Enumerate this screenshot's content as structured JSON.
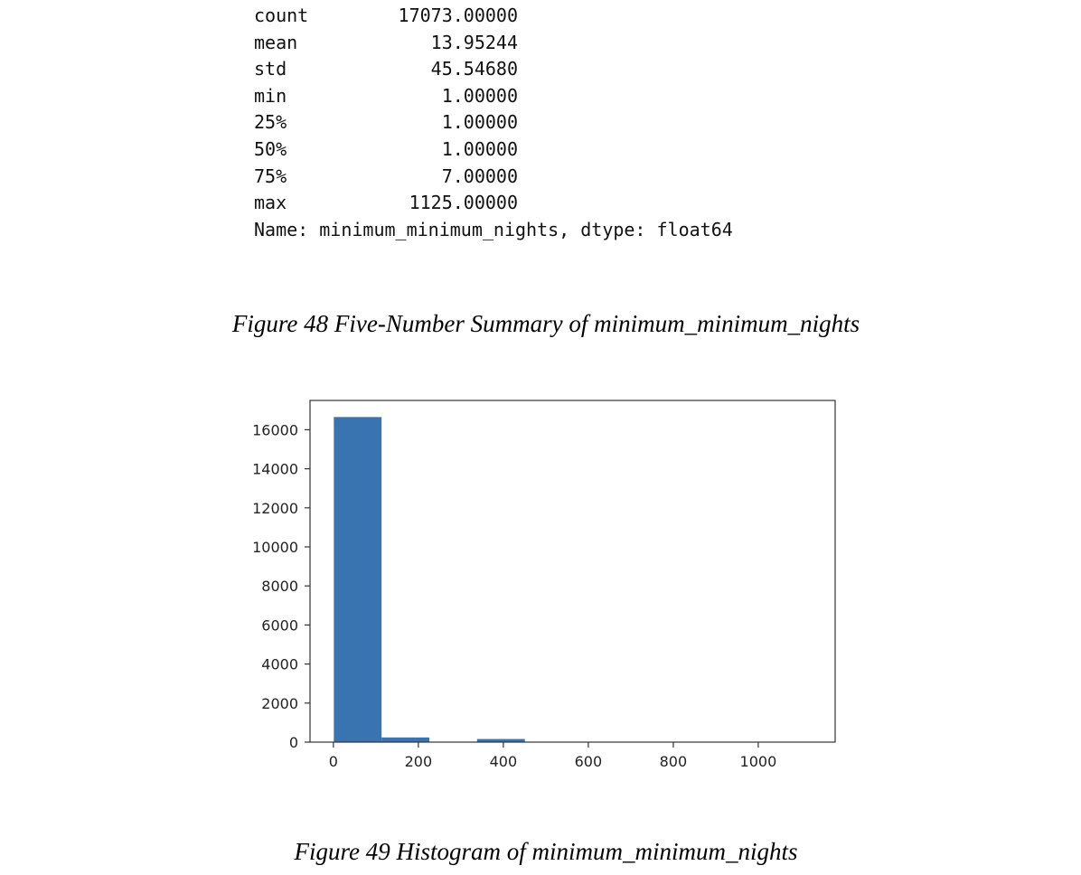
{
  "summary": {
    "rows": [
      {
        "key": "count",
        "value": "17073.00000"
      },
      {
        "key": "mean",
        "value": "13.95244"
      },
      {
        "key": "std",
        "value": "45.54680"
      },
      {
        "key": "min",
        "value": "1.00000"
      },
      {
        "key": "25%",
        "value": "1.00000"
      },
      {
        "key": "50%",
        "value": "1.00000"
      },
      {
        "key": "75%",
        "value": "7.00000"
      },
      {
        "key": "max",
        "value": "1125.00000"
      }
    ],
    "name_line": "Name: minimum_minimum_nights, dtype: float64"
  },
  "captions": {
    "fig48": "Figure 48 Five-Number Summary of minimum_minimum_nights",
    "fig49": "Figure 49 Histogram of minimum_minimum_nights"
  },
  "chart_data": {
    "type": "bar",
    "title": "",
    "xlabel": "",
    "ylabel": "",
    "bins": [
      {
        "x0": 1,
        "x1": 113.4,
        "count": 16650
      },
      {
        "x0": 113.4,
        "x1": 225.8,
        "count": 240
      },
      {
        "x0": 225.8,
        "x1": 338.2,
        "count": 0
      },
      {
        "x0": 338.2,
        "x1": 450.6,
        "count": 160
      },
      {
        "x0": 450.6,
        "x1": 563,
        "count": 0
      },
      {
        "x0": 563,
        "x1": 675.4,
        "count": 0
      },
      {
        "x0": 675.4,
        "x1": 787.8,
        "count": 0
      },
      {
        "x0": 787.8,
        "x1": 900.2,
        "count": 0
      },
      {
        "x0": 900.2,
        "x1": 1012.6,
        "count": 0
      },
      {
        "x0": 1012.6,
        "x1": 1125,
        "count": 20
      }
    ],
    "xlim": [
      -55,
      1181
    ],
    "ylim": [
      0,
      17500
    ],
    "xticks": [
      "0",
      "200",
      "400",
      "600",
      "800",
      "1000"
    ],
    "xtick_values": [
      0,
      200,
      400,
      600,
      800,
      1000
    ],
    "yticks": [
      "0",
      "2000",
      "4000",
      "6000",
      "8000",
      "10000",
      "12000",
      "14000",
      "16000"
    ],
    "ytick_values": [
      0,
      2000,
      4000,
      6000,
      8000,
      10000,
      12000,
      14000,
      16000
    ],
    "bar_color": "#3a74b0",
    "grid": false
  }
}
